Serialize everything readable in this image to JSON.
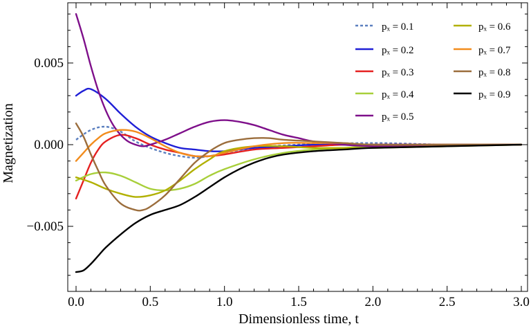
{
  "chart_data": {
    "type": "line",
    "title": "",
    "xlabel": "Dimensionless time, t",
    "ylabel": "Magnetization",
    "xlim": [
      0,
      3
    ],
    "ylim": [
      -0.0087,
      0.0087
    ],
    "xticks": [
      0,
      0.5,
      1,
      1.5,
      2,
      2.5,
      3
    ],
    "xtick_labels": [
      "0.0",
      "0.5",
      "1.0",
      "1.5",
      "2.0",
      "2.5",
      "3.0"
    ],
    "yticks": [
      -0.005,
      0,
      0.005
    ],
    "ytick_labels": [
      "−0.005",
      "0.000",
      "0.005"
    ],
    "legend_position": "top-right",
    "series": [
      {
        "name": "0.1",
        "legend_label": "pₓ = 0.1",
        "color": "#5b7fbf",
        "dashed": true,
        "x": [
          0,
          0.1,
          0.2,
          0.3,
          0.4,
          0.5,
          0.6,
          0.7,
          0.8,
          0.9,
          1.0,
          1.2,
          1.5,
          2.0,
          2.5,
          3.0
        ],
        "values": [
          0.0003,
          0.0009,
          0.0011,
          0.0008,
          0.0002,
          -0.0002,
          -0.0005,
          -0.0007,
          -0.0008,
          -0.0007,
          -0.0005,
          -0.0002,
          0.0,
          0.0001,
          0.0,
          0.0
        ]
      },
      {
        "name": "0.2",
        "legend_label": "pₓ = 0.2",
        "color": "#1f1fd6",
        "dashed": false,
        "x": [
          0,
          0.05,
          0.1,
          0.2,
          0.3,
          0.4,
          0.5,
          0.6,
          0.7,
          0.8,
          0.9,
          1.0,
          1.1,
          1.2,
          1.4,
          1.6,
          1.8,
          2.0,
          2.5,
          3.0
        ],
        "values": [
          0.003,
          0.0033,
          0.0034,
          0.0028,
          0.0019,
          0.0011,
          0.0005,
          0.0001,
          -0.0002,
          -0.0003,
          -0.0004,
          -0.0004,
          -0.0003,
          -0.0002,
          -0.0001,
          0.0,
          0.0,
          0.0,
          0.0,
          0.0
        ]
      },
      {
        "name": "0.3",
        "legend_label": "pₓ = 0.3",
        "color": "#e52020",
        "dashed": false,
        "x": [
          0,
          0.05,
          0.1,
          0.15,
          0.2,
          0.3,
          0.4,
          0.5,
          0.6,
          0.7,
          0.8,
          0.9,
          1.0,
          1.2,
          1.4,
          1.6,
          1.8,
          2.0,
          2.5,
          3.0
        ],
        "values": [
          -0.0033,
          -0.0022,
          -0.0011,
          -0.0003,
          0.0002,
          0.0006,
          0.0004,
          0.0,
          -0.0003,
          -0.0005,
          -0.0007,
          -0.0007,
          -0.0006,
          -0.0003,
          -0.0002,
          -0.0001,
          0.0,
          0.0,
          0.0,
          0.0
        ]
      },
      {
        "name": "0.4",
        "legend_label": "pₓ = 0.4",
        "color": "#a8cf3a",
        "dashed": false,
        "x": [
          0,
          0.1,
          0.2,
          0.3,
          0.4,
          0.5,
          0.6,
          0.7,
          0.8,
          0.9,
          1.0,
          1.2,
          1.4,
          1.6,
          1.8,
          2.0,
          2.5,
          3.0
        ],
        "values": [
          -0.0022,
          -0.0018,
          -0.0017,
          -0.0019,
          -0.0023,
          -0.0027,
          -0.0028,
          -0.0027,
          -0.0024,
          -0.0019,
          -0.0015,
          -0.0009,
          -0.0005,
          -0.0003,
          -0.0002,
          -0.0001,
          0.0,
          0.0
        ]
      },
      {
        "name": "0.5",
        "legend_label": "pₓ = 0.5",
        "color": "#7e0f8a",
        "dashed": false,
        "x": [
          0,
          0.05,
          0.1,
          0.15,
          0.2,
          0.25,
          0.3,
          0.35,
          0.4,
          0.45,
          0.5,
          0.6,
          0.7,
          0.8,
          0.9,
          1.0,
          1.1,
          1.2,
          1.3,
          1.4,
          1.5,
          1.6,
          1.8,
          2.0,
          2.2,
          2.5,
          2.8,
          3.0
        ],
        "values": [
          0.008,
          0.0065,
          0.0048,
          0.0033,
          0.0021,
          0.0012,
          0.0006,
          0.0002,
          0.0,
          -0.0001,
          0.0,
          0.0003,
          0.0007,
          0.0011,
          0.0014,
          0.0015,
          0.0014,
          0.0012,
          0.0009,
          0.0006,
          0.0004,
          0.0002,
          0.0,
          -0.0001,
          -0.0001,
          0.0,
          0.0,
          0.0
        ]
      },
      {
        "name": "0.6",
        "legend_label": "pₓ = 0.6",
        "color": "#b1b000",
        "dashed": false,
        "x": [
          0,
          0.1,
          0.2,
          0.3,
          0.4,
          0.5,
          0.6,
          0.7,
          0.8,
          0.9,
          1.0,
          1.2,
          1.4,
          1.6,
          1.8,
          2.0,
          2.5,
          3.0
        ],
        "values": [
          -0.002,
          -0.0023,
          -0.0027,
          -0.003,
          -0.0032,
          -0.0031,
          -0.0028,
          -0.0022,
          -0.0015,
          -0.0009,
          -0.0004,
          -0.0001,
          -0.0001,
          -0.0002,
          -0.0002,
          -0.0002,
          -0.0001,
          0.0
        ]
      },
      {
        "name": "0.7",
        "legend_label": "pₓ = 0.7",
        "color": "#f28c1c",
        "dashed": false,
        "x": [
          0,
          0.05,
          0.1,
          0.15,
          0.2,
          0.3,
          0.4,
          0.5,
          0.6,
          0.7,
          0.8,
          0.9,
          1.0,
          1.2,
          1.4,
          1.6,
          1.8,
          2.0,
          2.5,
          3.0
        ],
        "values": [
          -0.001,
          -0.0005,
          0.0,
          0.0004,
          0.0007,
          0.0009,
          0.0008,
          0.0004,
          -0.0001,
          -0.0005,
          -0.0007,
          -0.0007,
          -0.0005,
          -0.0001,
          0.0001,
          0.0001,
          0.0001,
          0.0,
          0.0,
          0.0
        ]
      },
      {
        "name": "0.8",
        "legend_label": "pₓ = 0.8",
        "color": "#9b6d3c",
        "dashed": false,
        "x": [
          0,
          0.05,
          0.1,
          0.15,
          0.2,
          0.3,
          0.4,
          0.45,
          0.5,
          0.6,
          0.7,
          0.8,
          0.9,
          1.0,
          1.1,
          1.2,
          1.3,
          1.4,
          1.6,
          1.8,
          2.0,
          2.5,
          3.0
        ],
        "values": [
          0.0013,
          0.0005,
          -0.0006,
          -0.0016,
          -0.0025,
          -0.0036,
          -0.004,
          -0.004,
          -0.0038,
          -0.0031,
          -0.0021,
          -0.0011,
          -0.0004,
          0.0001,
          0.0003,
          0.0004,
          0.0004,
          0.0003,
          0.0002,
          0.0001,
          0.0,
          0.0,
          0.0
        ]
      },
      {
        "name": "0.9",
        "legend_label": "pₓ = 0.9",
        "color": "#000000",
        "dashed": false,
        "x": [
          0,
          0.05,
          0.1,
          0.15,
          0.2,
          0.3,
          0.4,
          0.5,
          0.6,
          0.7,
          0.8,
          0.9,
          1.0,
          1.1,
          1.2,
          1.3,
          1.4,
          1.6,
          1.8,
          2.0,
          2.5,
          3.0
        ],
        "values": [
          -0.0078,
          -0.0077,
          -0.0073,
          -0.0068,
          -0.0063,
          -0.0055,
          -0.0048,
          -0.0043,
          -0.004,
          -0.0037,
          -0.0032,
          -0.0026,
          -0.002,
          -0.0015,
          -0.0011,
          -0.0008,
          -0.0006,
          -0.0004,
          -0.0003,
          -0.0002,
          -0.0001,
          0.0
        ]
      }
    ]
  }
}
